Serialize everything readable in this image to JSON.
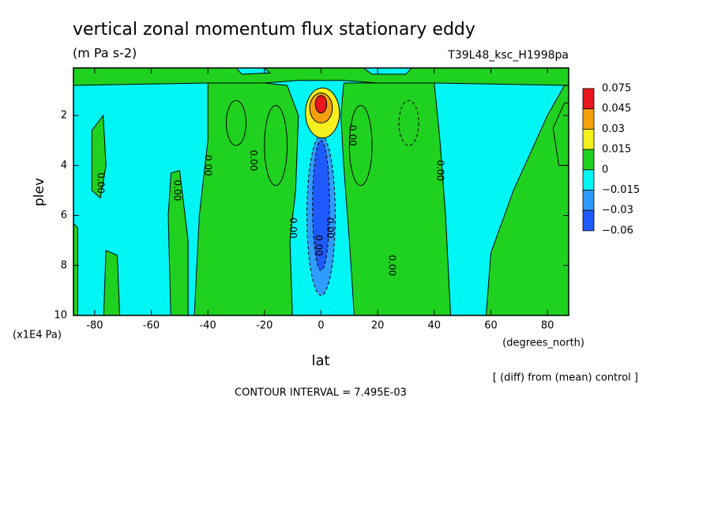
{
  "chart_data": {
    "type": "contour",
    "title": "vertical zonal momentum flux stationary eddy",
    "subtitle": "(m Pa s-2)",
    "run_label": "T39L48_ksc_H1998pa",
    "x_label": "lat",
    "x_unit": "(degrees_north)",
    "y_label": "plev",
    "y_unit": "(x1E4 Pa)",
    "note": "[ (diff) from (mean) control ]",
    "contour_interval": "CONTOUR INTERVAL = 7.495E-03",
    "xlim": [
      -87.5,
      87.5
    ],
    "xticks": [
      -80,
      -60,
      -40,
      -20,
      0,
      20,
      40,
      60,
      80
    ],
    "ylim": [
      0.1,
      10
    ],
    "y_reversed": true,
    "yticks": [
      2,
      4,
      6,
      8,
      10
    ],
    "colorbar": {
      "levels": [
        0.075,
        0.045,
        0.03,
        0.015,
        0,
        {
          "value": -0.015,
          "label": "−0.015"
        },
        {
          "value": -0.03,
          "label": "−0.03"
        },
        {
          "value": -0.06,
          "label": "−0.06"
        }
      ],
      "colors": [
        "#e8161b",
        "#f5a10d",
        "#f5f01e",
        "#1fd21f",
        "#00f5f5",
        "#2f9bff",
        "#1f5aff"
      ]
    },
    "contour_labels": [
      "0.00",
      "0.00",
      "0.00",
      "0.00",
      "0.00",
      "0.00",
      "0.00",
      "0.00",
      "0.00",
      "0.00"
    ]
  }
}
